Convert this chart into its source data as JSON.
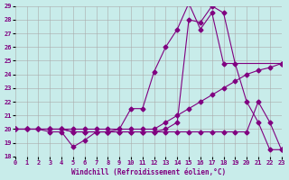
{
  "xlabel": "Windchill (Refroidissement éolien,°C)",
  "xlim": [
    0,
    23
  ],
  "ylim": [
    18,
    29
  ],
  "xticks": [
    0,
    1,
    2,
    3,
    4,
    5,
    6,
    7,
    8,
    9,
    10,
    11,
    12,
    13,
    14,
    15,
    16,
    17,
    18,
    19,
    20,
    21,
    22,
    23
  ],
  "yticks": [
    18,
    19,
    20,
    21,
    22,
    23,
    24,
    25,
    26,
    27,
    28,
    29
  ],
  "background_color": "#c8ecea",
  "grid_color": "#aaaaaa",
  "line_color": "#800080",
  "lines": [
    {
      "x": [
        0,
        1,
        2,
        3,
        4,
        5,
        6,
        7,
        8,
        9,
        10,
        11,
        12,
        13,
        14,
        15,
        16,
        17,
        18,
        23
      ],
      "y": [
        20,
        20,
        20,
        19.8,
        19.8,
        18.7,
        19.2,
        19.8,
        19.8,
        20,
        21.5,
        21.5,
        24.2,
        26,
        27.3,
        29.2,
        27.3,
        28.5,
        24.8,
        24.8
      ]
    },
    {
      "x": [
        0,
        1,
        2,
        3,
        4,
        5,
        6,
        7,
        8,
        9,
        10,
        11,
        12,
        13,
        14,
        15,
        16,
        17,
        18,
        19,
        20,
        21,
        22,
        23
      ],
      "y": [
        20,
        20,
        20,
        20,
        20,
        20,
        20,
        20,
        20,
        20,
        20,
        20,
        20,
        20.5,
        21,
        21.5,
        22,
        22.5,
        23,
        23.5,
        24,
        24.3,
        24.5,
        24.8
      ]
    },
    {
      "x": [
        0,
        1,
        2,
        3,
        4,
        5,
        6,
        7,
        8,
        9,
        10,
        11,
        12,
        13,
        14,
        15,
        16,
        17,
        18,
        19,
        20,
        21,
        22,
        23
      ],
      "y": [
        20,
        20,
        20,
        20,
        20,
        19.8,
        19.8,
        19.8,
        19.8,
        19.8,
        19.8,
        19.8,
        19.8,
        19.8,
        19.8,
        19.8,
        19.8,
        19.8,
        19.8,
        19.8,
        19.8,
        22,
        20.5,
        18.5
      ]
    },
    {
      "x": [
        0,
        1,
        2,
        3,
        4,
        5,
        6,
        7,
        8,
        9,
        10,
        11,
        12,
        13,
        14,
        15,
        16,
        17,
        18,
        19,
        20,
        21,
        22,
        23
      ],
      "y": [
        20,
        20,
        20,
        20,
        20,
        19.8,
        19.8,
        19.8,
        19.8,
        19.8,
        19.8,
        19.8,
        19.8,
        20,
        20.5,
        28,
        27.8,
        29,
        28.5,
        24.8,
        22,
        20.5,
        18.5,
        18.5
      ]
    }
  ]
}
